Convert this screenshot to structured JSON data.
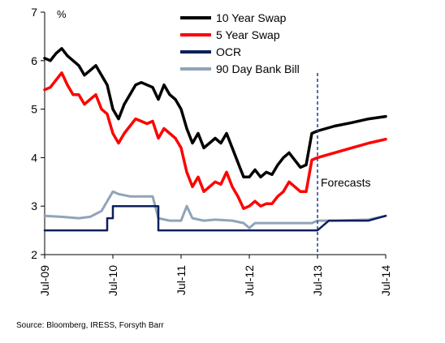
{
  "chart_data": {
    "type": "line",
    "unit_label": "%",
    "ylim": [
      2,
      7
    ],
    "yticks": [
      "2",
      "3",
      "4",
      "5",
      "6",
      "7"
    ],
    "xlim": [
      "2009-07",
      "2014-07"
    ],
    "xticks": [
      {
        "label": "Jul-09",
        "x": "2009-07"
      },
      {
        "label": "Jul-10",
        "x": "2010-07"
      },
      {
        "label": "Jul-11",
        "x": "2011-07"
      },
      {
        "label": "Jul-12",
        "x": "2012-07"
      },
      {
        "label": "Jul-13",
        "x": "2013-07"
      },
      {
        "label": "Jul-14",
        "x": "2014-07"
      }
    ],
    "legend_position": "top-right",
    "forecast": {
      "label": "Forecasts",
      "x": "2013-07"
    },
    "series": [
      {
        "name": "10 Year Swap",
        "color": "#000000",
        "points": [
          [
            "2009-07",
            6.05
          ],
          [
            "2009-08",
            6.0
          ],
          [
            "2009-09",
            6.15
          ],
          [
            "2009-10",
            6.25
          ],
          [
            "2009-11",
            6.1
          ],
          [
            "2009-12",
            6.0
          ],
          [
            "2010-01",
            5.9
          ],
          [
            "2010-02",
            5.7
          ],
          [
            "2010-03",
            5.8
          ],
          [
            "2010-04",
            5.9
          ],
          [
            "2010-05",
            5.7
          ],
          [
            "2010-06",
            5.5
          ],
          [
            "2010-07",
            5.0
          ],
          [
            "2010-08",
            4.8
          ],
          [
            "2010-09",
            5.1
          ],
          [
            "2010-10",
            5.3
          ],
          [
            "2010-11",
            5.5
          ],
          [
            "2010-12",
            5.55
          ],
          [
            "2011-01",
            5.5
          ],
          [
            "2011-02",
            5.45
          ],
          [
            "2011-03",
            5.2
          ],
          [
            "2011-04",
            5.5
          ],
          [
            "2011-05",
            5.3
          ],
          [
            "2011-06",
            5.2
          ],
          [
            "2011-07",
            5.0
          ],
          [
            "2011-08",
            4.6
          ],
          [
            "2011-09",
            4.3
          ],
          [
            "2011-10",
            4.5
          ],
          [
            "2011-11",
            4.2
          ],
          [
            "2011-12",
            4.3
          ],
          [
            "2012-01",
            4.4
          ],
          [
            "2012-02",
            4.3
          ],
          [
            "2012-03",
            4.5
          ],
          [
            "2012-04",
            4.2
          ],
          [
            "2012-05",
            3.9
          ],
          [
            "2012-06",
            3.6
          ],
          [
            "2012-07",
            3.6
          ],
          [
            "2012-08",
            3.75
          ],
          [
            "2012-09",
            3.6
          ],
          [
            "2012-10",
            3.7
          ],
          [
            "2012-11",
            3.65
          ],
          [
            "2012-12",
            3.85
          ],
          [
            "2013-01",
            4.0
          ],
          [
            "2013-02",
            4.1
          ],
          [
            "2013-03",
            3.95
          ],
          [
            "2013-04",
            3.8
          ],
          [
            "2013-05",
            3.85
          ],
          [
            "2013-06",
            4.5
          ],
          [
            "2013-07",
            4.55
          ],
          [
            "2013-10",
            4.65
          ],
          [
            "2014-01",
            4.72
          ],
          [
            "2014-04",
            4.8
          ],
          [
            "2014-07",
            4.85
          ]
        ]
      },
      {
        "name": "5 Year Swap",
        "color": "#ff0000",
        "points": [
          [
            "2009-07",
            5.4
          ],
          [
            "2009-08",
            5.45
          ],
          [
            "2009-09",
            5.6
          ],
          [
            "2009-10",
            5.75
          ],
          [
            "2009-11",
            5.5
          ],
          [
            "2009-12",
            5.3
          ],
          [
            "2010-01",
            5.3
          ],
          [
            "2010-02",
            5.1
          ],
          [
            "2010-03",
            5.2
          ],
          [
            "2010-04",
            5.3
          ],
          [
            "2010-05",
            5.0
          ],
          [
            "2010-06",
            4.9
          ],
          [
            "2010-07",
            4.5
          ],
          [
            "2010-08",
            4.3
          ],
          [
            "2010-09",
            4.5
          ],
          [
            "2010-10",
            4.65
          ],
          [
            "2010-11",
            4.8
          ],
          [
            "2010-12",
            4.75
          ],
          [
            "2011-01",
            4.7
          ],
          [
            "2011-02",
            4.75
          ],
          [
            "2011-03",
            4.4
          ],
          [
            "2011-04",
            4.6
          ],
          [
            "2011-05",
            4.5
          ],
          [
            "2011-06",
            4.4
          ],
          [
            "2011-07",
            4.2
          ],
          [
            "2011-08",
            3.7
          ],
          [
            "2011-09",
            3.4
          ],
          [
            "2011-10",
            3.6
          ],
          [
            "2011-11",
            3.3
          ],
          [
            "2011-12",
            3.4
          ],
          [
            "2012-01",
            3.5
          ],
          [
            "2012-02",
            3.45
          ],
          [
            "2012-03",
            3.7
          ],
          [
            "2012-04",
            3.4
          ],
          [
            "2012-05",
            3.2
          ],
          [
            "2012-06",
            2.95
          ],
          [
            "2012-07",
            3.0
          ],
          [
            "2012-08",
            3.1
          ],
          [
            "2012-09",
            3.0
          ],
          [
            "2012-10",
            3.05
          ],
          [
            "2012-11",
            3.05
          ],
          [
            "2012-12",
            3.2
          ],
          [
            "2013-01",
            3.3
          ],
          [
            "2013-02",
            3.5
          ],
          [
            "2013-03",
            3.4
          ],
          [
            "2013-04",
            3.3
          ],
          [
            "2013-05",
            3.3
          ],
          [
            "2013-06",
            3.95
          ],
          [
            "2013-07",
            4.0
          ],
          [
            "2013-10",
            4.1
          ],
          [
            "2014-01",
            4.2
          ],
          [
            "2014-04",
            4.3
          ],
          [
            "2014-07",
            4.38
          ]
        ]
      },
      {
        "name": "OCR",
        "color": "#0d1f5c",
        "points": [
          [
            "2009-07",
            2.5
          ],
          [
            "2010-06",
            2.5
          ],
          [
            "2010-06",
            2.75
          ],
          [
            "2010-07",
            2.75
          ],
          [
            "2010-07",
            3.0
          ],
          [
            "2011-03",
            3.0
          ],
          [
            "2011-03",
            2.5
          ],
          [
            "2013-07",
            2.5
          ],
          [
            "2013-09",
            2.7
          ],
          [
            "2014-04",
            2.7
          ],
          [
            "2014-07",
            2.8
          ]
        ]
      },
      {
        "name": "90 Day Bank Bill",
        "color": "#8fa4b8",
        "points": [
          [
            "2009-07",
            2.8
          ],
          [
            "2009-10",
            2.78
          ],
          [
            "2010-01",
            2.75
          ],
          [
            "2010-03",
            2.78
          ],
          [
            "2010-05",
            2.9
          ],
          [
            "2010-06",
            3.1
          ],
          [
            "2010-07",
            3.3
          ],
          [
            "2010-08",
            3.25
          ],
          [
            "2010-10",
            3.2
          ],
          [
            "2010-12",
            3.2
          ],
          [
            "2011-02",
            3.2
          ],
          [
            "2011-03",
            2.75
          ],
          [
            "2011-05",
            2.7
          ],
          [
            "2011-07",
            2.7
          ],
          [
            "2011-08",
            3.0
          ],
          [
            "2011-09",
            2.75
          ],
          [
            "2011-11",
            2.7
          ],
          [
            "2012-01",
            2.72
          ],
          [
            "2012-04",
            2.7
          ],
          [
            "2012-06",
            2.65
          ],
          [
            "2012-07",
            2.55
          ],
          [
            "2012-08",
            2.65
          ],
          [
            "2012-10",
            2.65
          ],
          [
            "2012-12",
            2.65
          ],
          [
            "2013-02",
            2.65
          ],
          [
            "2013-04",
            2.65
          ],
          [
            "2013-06",
            2.65
          ],
          [
            "2013-07",
            2.7
          ],
          [
            "2013-10",
            2.7
          ],
          [
            "2014-04",
            2.72
          ],
          [
            "2014-07",
            2.8
          ]
        ]
      }
    ]
  },
  "source": "Source: Bloomberg, IRESS, Forsyth Barr"
}
